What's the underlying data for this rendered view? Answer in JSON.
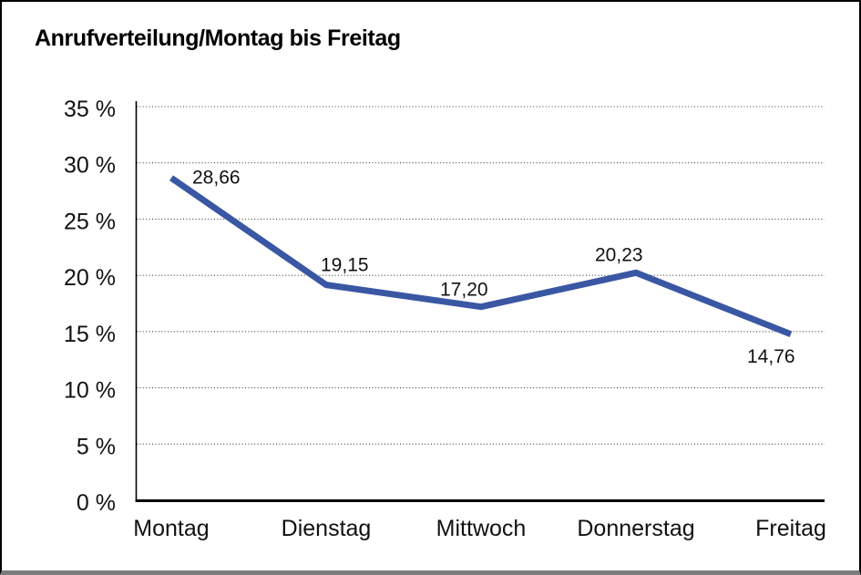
{
  "title": "Anrufverteilung/Montag bis Freitag",
  "chart_data": {
    "type": "line",
    "title": "Anrufverteilung/Montag bis Freitag",
    "categories": [
      "Montag",
      "Dienstag",
      "Mittwoch",
      "Donnerstag",
      "Freitag"
    ],
    "values": [
      28.66,
      19.15,
      17.2,
      20.23,
      14.76
    ],
    "value_labels": [
      "28,66",
      "19,15",
      "17,20",
      "20,23",
      "14,76"
    ],
    "y_ticks": [
      "0 %",
      "5 %",
      "10 %",
      "15 %",
      "20 %",
      "25 %",
      "30 %",
      "35 %"
    ],
    "ylim": [
      0,
      35
    ],
    "y_tick_step": 5,
    "xlabel": "",
    "ylabel": "",
    "grid": "horizontal-dotted",
    "legend_position": "none",
    "colors": {
      "series_line": "#3a57a4",
      "axis": "#000000",
      "gridline_dots": "#3f3f3f",
      "text": "#111111",
      "background": "#ffffff",
      "frame_border": "#000000",
      "frame_bottom_edge": "#7d7d7d"
    }
  }
}
